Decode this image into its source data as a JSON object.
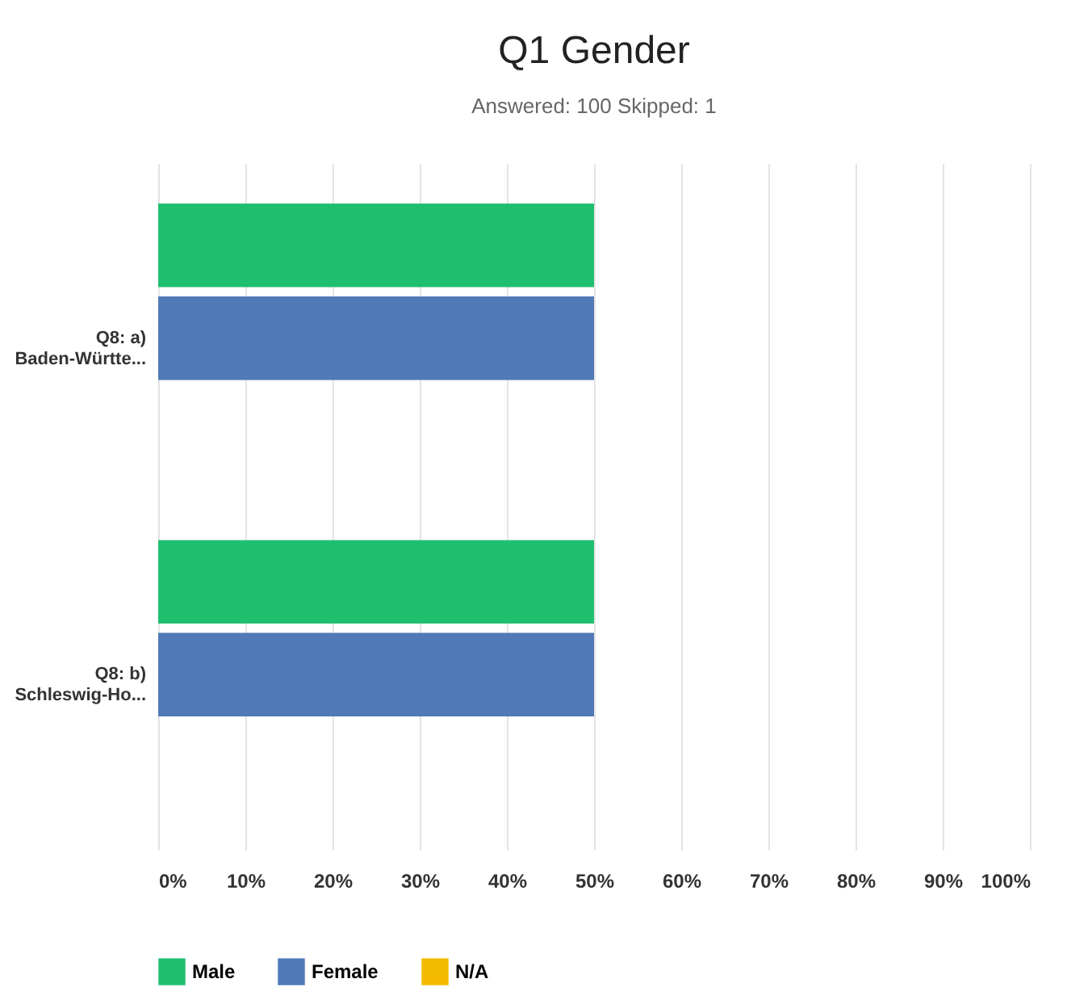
{
  "chart_data": {
    "type": "bar",
    "orientation": "horizontal",
    "title": "Q1 Gender",
    "subtitle": "Answered: 100    Skipped: 1",
    "categories": [
      "Q8: a)\nBaden-Württe...",
      "Q8: b)\nSchleswig-Ho..."
    ],
    "series": [
      {
        "name": "Male",
        "color": "#1fbf70",
        "values": [
          50,
          50
        ]
      },
      {
        "name": "Female",
        "color": "#5079b8",
        "values": [
          50,
          50
        ]
      },
      {
        "name": "N/A",
        "color": "#f5bb00",
        "values": [
          0,
          0
        ]
      }
    ],
    "xlim": [
      0,
      100
    ],
    "xticks": [
      {
        "value": 0,
        "label": "0%"
      },
      {
        "value": 10,
        "label": "10%"
      },
      {
        "value": 20,
        "label": "20%"
      },
      {
        "value": 30,
        "label": "30%"
      },
      {
        "value": 40,
        "label": "40%"
      },
      {
        "value": 50,
        "label": "50%"
      },
      {
        "value": 60,
        "label": "60%"
      },
      {
        "value": 70,
        "label": "70%"
      },
      {
        "value": 80,
        "label": "80%"
      },
      {
        "value": 90,
        "label": "90%"
      },
      {
        "value": 100,
        "label": "100%"
      }
    ],
    "grid": "x",
    "legend": "bottom left"
  }
}
